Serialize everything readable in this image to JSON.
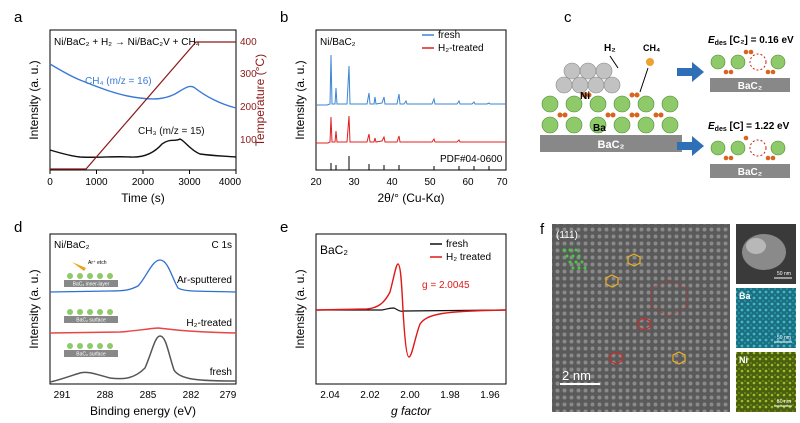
{
  "panels": {
    "a": {
      "letter": "a",
      "equation": "Ni/BaC₂ + H₂ → Ni/BaC₂V + CH₄",
      "xlabel": "Time (s)",
      "ylabel": "Intensity (a. u.)",
      "ylabel_right": "Temperature (°C)",
      "xticks": [
        "0",
        "1000",
        "2000",
        "3000",
        "4000"
      ],
      "yticks_right": [
        "100",
        "200",
        "300",
        "400"
      ],
      "series_ch4": "CH₄ (m/z = 16)",
      "series_ch3": "CH₃ (m/z = 15)"
    },
    "b": {
      "letter": "b",
      "sample": "Ni/BaC₂",
      "legend_fresh": "fresh",
      "legend_h2": "H₂-treated",
      "pdf_label": "PDF#04-0600",
      "xlabel": "2θ/° (Cu-Kα)",
      "ylabel": "Intensity (a. u.)",
      "xticks": [
        "20",
        "30",
        "40",
        "50",
        "60",
        "70"
      ]
    },
    "c": {
      "letter": "c",
      "h2": "H₂",
      "ch4": "CH₄",
      "ni": "Ni",
      "ba": "Ba",
      "substrate": "BaC₂",
      "substrate_top": "BaC₂",
      "substrate_bottom": "BaC₂",
      "edes_top": "E",
      "edes_top_sub": "des",
      "edes_top_val": " [C₂] = 0.16 eV",
      "edes_bottom": "E",
      "edes_bottom_sub": "des",
      "edes_bottom_val": " [C] = 1.22 eV"
    },
    "d": {
      "letter": "d",
      "sample": "Ni/BaC₂",
      "region": "C 1s",
      "series_top": "Ar-sputtered",
      "series_mid": "H₂-treated",
      "series_bot": "fresh",
      "inset_top": "BaC₂ inner-layer",
      "inset_top_ion": "Ar⁺ etch",
      "inset_mid": "BaC₂ surface",
      "inset_bot": "BaC₂ surface",
      "xlabel": "Binding energy (eV)",
      "ylabel": "Intensity (a. u.)",
      "xticks": [
        "291",
        "288",
        "285",
        "282",
        "279"
      ]
    },
    "e": {
      "letter": "e",
      "sample": "BaC₂",
      "legend_fresh": "fresh",
      "legend_h2": "H₂ treated",
      "g_value": "g = 2.0045",
      "xlabel": "g factor",
      "ylabel": "Intensity (a. u.)",
      "xticks": [
        "2.04",
        "2.02",
        "2.00",
        "1.98",
        "1.96"
      ]
    },
    "f": {
      "letter": "f",
      "plane": "(111)",
      "scale_main": "2 nm",
      "map_ba": "Ba",
      "map_ni": "Ni",
      "scale_map1": "50 nm",
      "scale_map2": "50 nm",
      "scale_map3": "50 nm"
    }
  },
  "colors": {
    "ch4": "#3a79d6",
    "ch3": "#111111",
    "temperature": "#8b1a1a",
    "fresh_xrd": "#3a86d1",
    "h2_xrd": "#e02020",
    "xps_top": "#2f6fd0",
    "xps_mid": "#e84545",
    "xps_bot": "#555555",
    "epr_h2": "#e01818"
  }
}
